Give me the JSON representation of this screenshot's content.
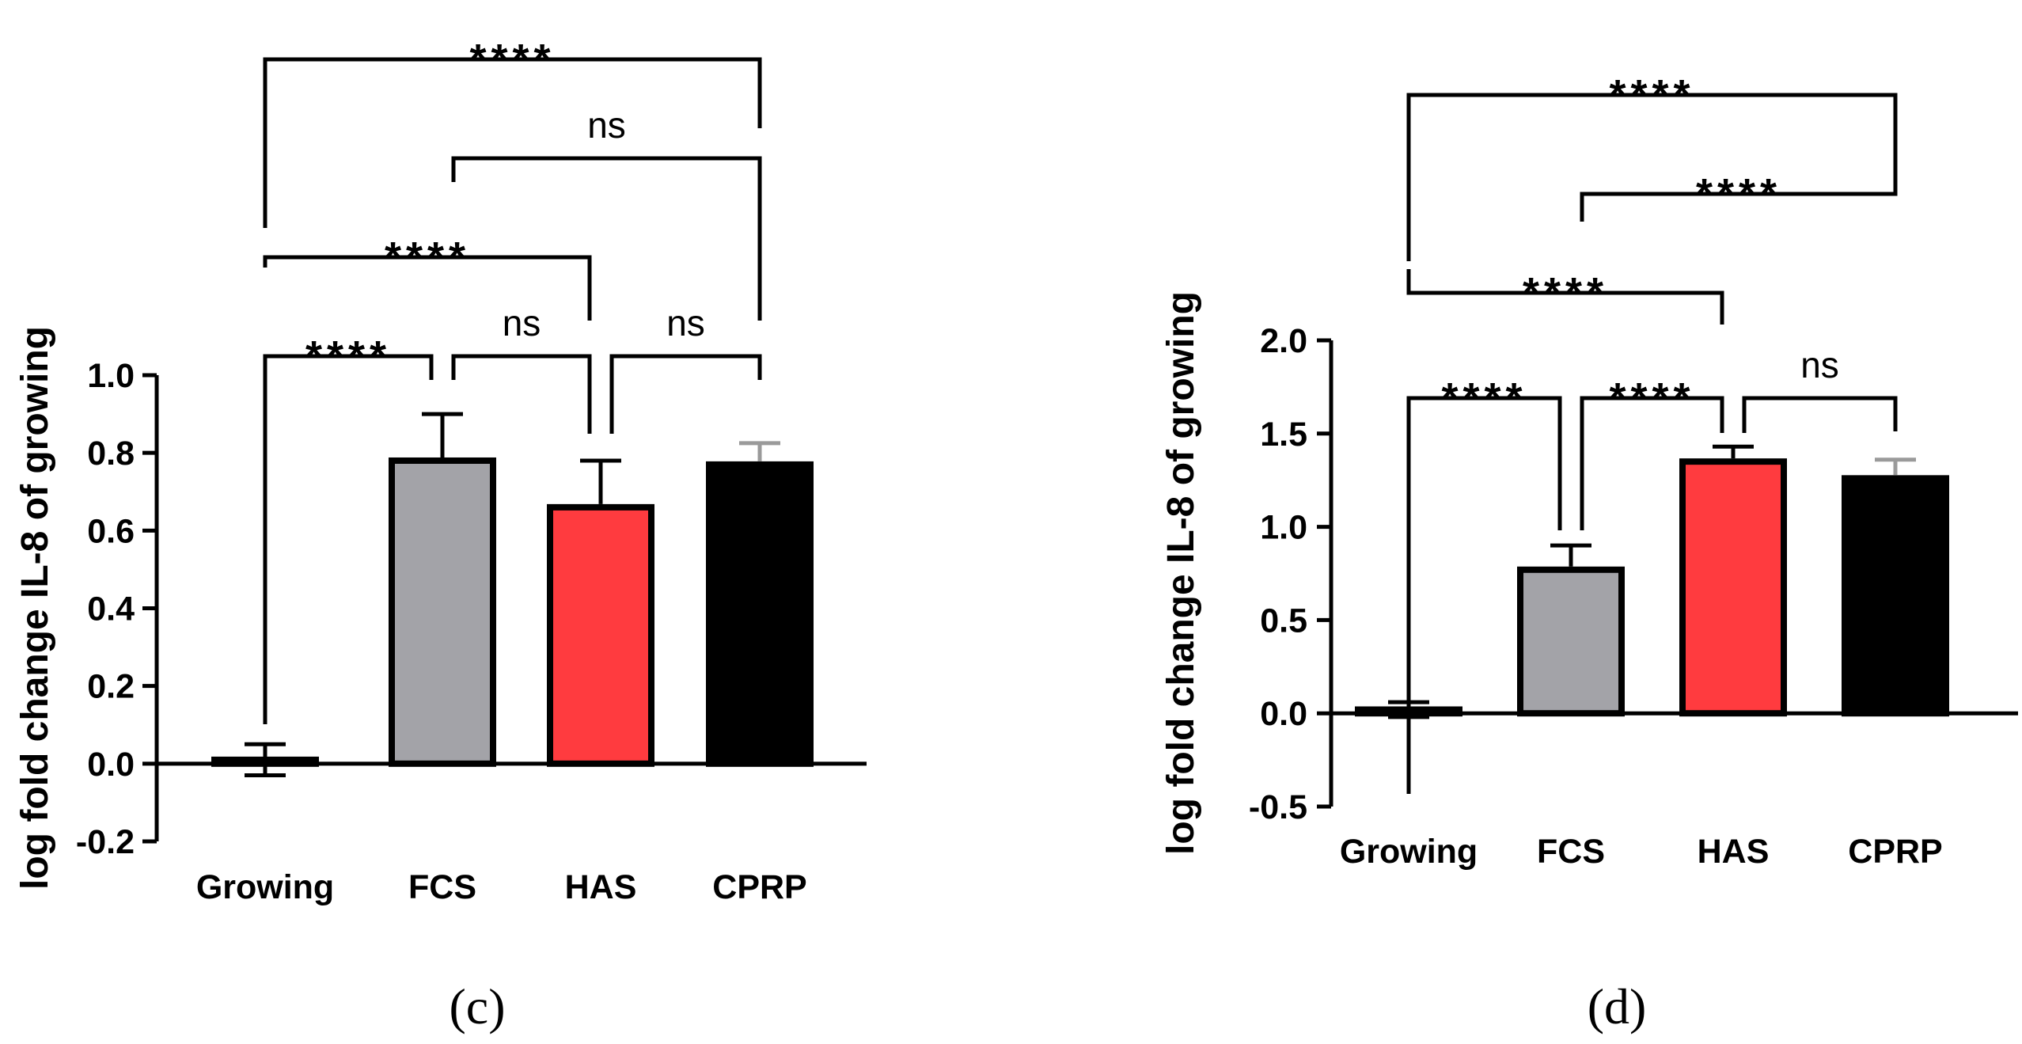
{
  "chart_data": [
    {
      "type": "bar",
      "panel_label": "(c)",
      "ylabel": "log fold change IL-8 of growing",
      "xlabel": "",
      "categories": [
        "Growing",
        "FCS",
        "HAS",
        "CPRP"
      ],
      "values": [
        0.01,
        0.78,
        0.66,
        0.77
      ],
      "errors": [
        0.04,
        0.12,
        0.12,
        0.055
      ],
      "error_direction": [
        "both",
        "up",
        "up",
        "up"
      ],
      "colors": [
        "#000000",
        "#a3a3a8",
        "#ff3b3f",
        "#000000"
      ],
      "error_colors": [
        "#000000",
        "#000000",
        "#000000",
        "#9a9a9a"
      ],
      "ylim": [
        -0.2,
        1.0
      ],
      "yticks": [
        -0.2,
        0.0,
        0.2,
        0.4,
        0.6,
        0.8,
        1.0
      ],
      "ytick_labels": [
        "-0.2",
        "0.0",
        "0.2",
        "0.4",
        "0.6",
        "0.8",
        "1.0"
      ],
      "comparisons": [
        {
          "from": 0,
          "to": 1,
          "label": "****"
        },
        {
          "from": 1,
          "to": 2,
          "label": "ns"
        },
        {
          "from": 2,
          "to": 3,
          "label": "ns"
        },
        {
          "from": 0,
          "to": 2,
          "label": "****"
        },
        {
          "from": 1,
          "to": 3,
          "label": "ns"
        },
        {
          "from": 0,
          "to": 3,
          "label": "****"
        }
      ]
    },
    {
      "type": "bar",
      "panel_label": "(d)",
      "ylabel": "log fold change IL-8 of growing",
      "xlabel": "",
      "categories": [
        "Growing",
        "FCS",
        "HAS",
        "CPRP"
      ],
      "values": [
        0.02,
        0.77,
        1.35,
        1.26
      ],
      "errors": [
        0.04,
        0.13,
        0.08,
        0.1
      ],
      "error_direction": [
        "both",
        "up",
        "up",
        "up"
      ],
      "colors": [
        "#000000",
        "#a3a3a8",
        "#ff3b3f",
        "#000000"
      ],
      "error_colors": [
        "#000000",
        "#000000",
        "#000000",
        "#9a9a9a"
      ],
      "ylim": [
        -0.5,
        2.0
      ],
      "yticks": [
        -0.5,
        0.0,
        0.5,
        1.0,
        1.5,
        2.0
      ],
      "ytick_labels": [
        "-0.5",
        "0.0",
        "0.5",
        "1.0",
        "1.5",
        "2.0"
      ],
      "comparisons": [
        {
          "from": 0,
          "to": 1,
          "label": "****"
        },
        {
          "from": 1,
          "to": 2,
          "label": "****"
        },
        {
          "from": 2,
          "to": 3,
          "label": "ns"
        },
        {
          "from": 0,
          "to": 2,
          "label": "****"
        },
        {
          "from": 1,
          "to": 3,
          "label": "****"
        },
        {
          "from": 0,
          "to": 3,
          "label": "****"
        }
      ]
    }
  ]
}
